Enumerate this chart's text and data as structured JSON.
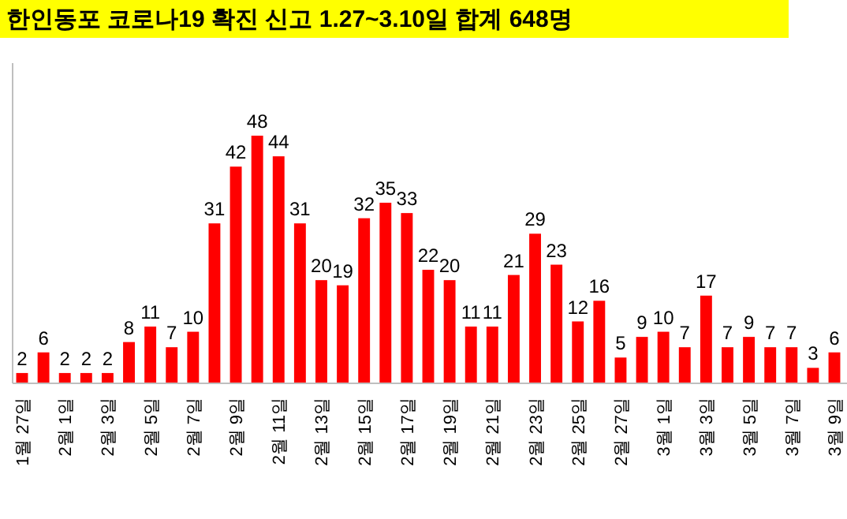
{
  "chart_data": {
    "type": "bar",
    "title": "한인동포 코로나19 확진 신고 1.27~3.10일 합계 648명",
    "categories": [
      "1월 27일",
      null,
      "2월 1일",
      null,
      "2월 3일",
      null,
      "2월 5일",
      null,
      "2월 7일",
      null,
      "2월 9일",
      null,
      "2월 11일",
      null,
      "2월 13일",
      null,
      "2월 15일",
      null,
      "2월 17일",
      null,
      "2월 19일",
      null,
      "2월 21일",
      null,
      "2월 23일",
      null,
      "2월 25일",
      null,
      "2월 27일",
      null,
      "3월 1일",
      null,
      "3월 3일",
      null,
      "3월 5일",
      null,
      "3월 7일",
      null,
      "3월 9일"
    ],
    "values": [
      2,
      6,
      2,
      2,
      2,
      8,
      11,
      7,
      10,
      31,
      42,
      48,
      44,
      31,
      20,
      19,
      32,
      35,
      33,
      22,
      20,
      11,
      11,
      21,
      29,
      23,
      12,
      16,
      5,
      9,
      10,
      7,
      17,
      7,
      9,
      7,
      7,
      3,
      6
    ],
    "color": "#ff0000",
    "data_labels": true
  }
}
